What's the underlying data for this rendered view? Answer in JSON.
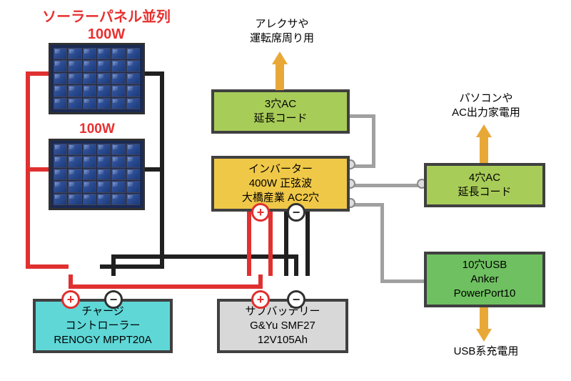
{
  "diagram": {
    "type": "flowchart",
    "background_color": "#ffffff",
    "border_color": "#404040",
    "wire_colors": {
      "positive": "#e03030",
      "negative": "#202020",
      "ac_gray": "#a0a0a0"
    },
    "arrow_color": "#e8a838",
    "title": {
      "text": "ソーラーパネル並列",
      "sub": "100W",
      "color": "#e83030",
      "fontsize": 20
    },
    "panel2_label": "100W",
    "solar_panel": {
      "cols": 6,
      "rows": 5,
      "cell_color_light": "#3a5da8",
      "cell_color_dark": "#1a3a78",
      "frame_color": "#303030"
    },
    "nodes": {
      "charge_controller": {
        "lines": [
          "チャージ",
          "コントローラー",
          "RENOGY MPPT20A"
        ],
        "bg": "#5fd7d7"
      },
      "sub_battery": {
        "lines": [
          "サブバッテリー",
          "G&Yu SMF27",
          "12V105Ah"
        ],
        "bg": "#d8d8d8"
      },
      "inverter": {
        "lines": [
          "インバーター",
          "400W 正弦波",
          "大橋産業 AC2穴"
        ],
        "bg": "#f0c848"
      },
      "ac3": {
        "lines": [
          "3穴AC",
          "延長コード"
        ],
        "bg": "#a8cc58"
      },
      "ac4": {
        "lines": [
          "4穴AC",
          "延長コード"
        ],
        "bg": "#a8cc58"
      },
      "usb": {
        "lines": [
          "10穴USB",
          "Anker",
          "PowerPort10"
        ],
        "bg": "#6fc060"
      }
    },
    "out_labels": {
      "top_left": "アレクサや\n運転席周り用",
      "top_right": "パソコンや\nAC出力家電用",
      "bottom_right": "USB系充電用"
    }
  }
}
